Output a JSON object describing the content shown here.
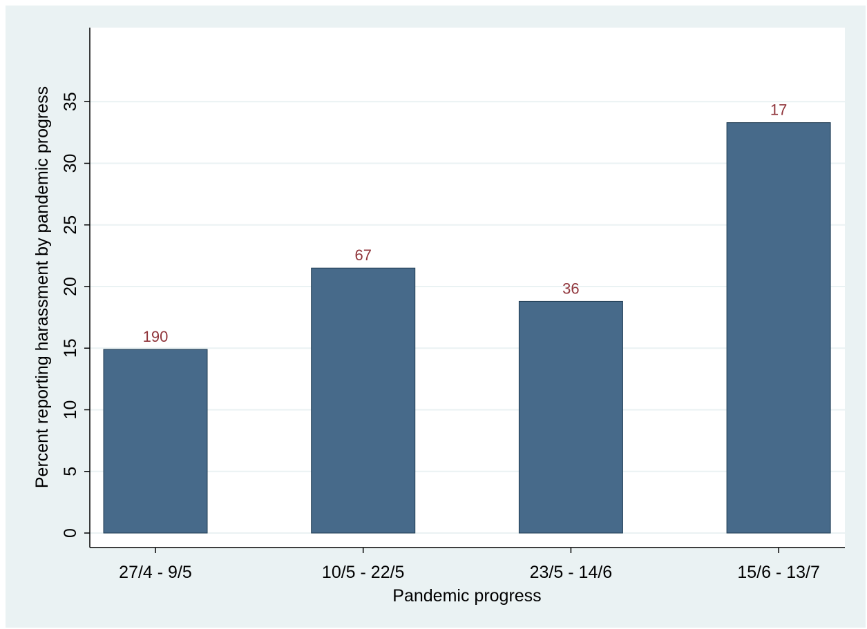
{
  "chart_data": {
    "type": "bar",
    "categories": [
      "27/4 - 9/5",
      "10/5 - 22/5",
      "23/5 - 14/6",
      "15/6 - 13/7"
    ],
    "values": [
      14.9,
      21.5,
      18.8,
      33.3
    ],
    "data_labels": [
      "190",
      "67",
      "36",
      "17"
    ],
    "xlabel": "Pandemic progress",
    "ylabel": "Percent reporting harassment by pandemic progress",
    "ylim": [
      0,
      40
    ],
    "yticks": [
      0,
      5,
      10,
      15,
      20,
      25,
      30,
      35
    ],
    "grid": true,
    "legend": "none"
  },
  "colors": {
    "bar_fill": "#476a8a",
    "bar_stroke": "#1f3b52",
    "gridline": "#eaf2f3",
    "outer_background": "#eaf2f3",
    "plot_background": "#ffffff",
    "data_label": "#90353b"
  }
}
